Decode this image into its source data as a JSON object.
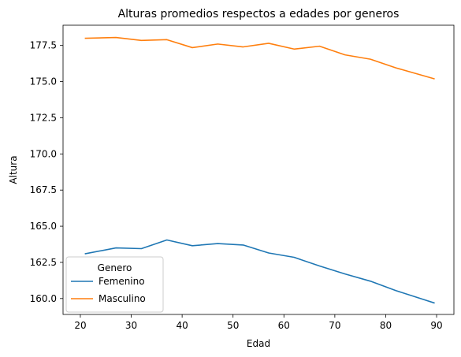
{
  "chart_data": {
    "type": "line",
    "title": "Alturas promedios respectos a edades por generos",
    "xlabel": "Edad",
    "ylabel": "Altura",
    "xlim": [
      16.6,
      93.4
    ],
    "ylim": [
      158.9,
      178.9
    ],
    "x_ticks": [
      20,
      30,
      40,
      50,
      60,
      70,
      80,
      90
    ],
    "y_ticks": [
      160.0,
      162.5,
      165.0,
      167.5,
      170.0,
      172.5,
      175.0,
      177.5
    ],
    "x_tick_labels": [
      "20",
      "30",
      "40",
      "50",
      "60",
      "70",
      "80",
      "90"
    ],
    "y_tick_labels": [
      "160.0",
      "162.5",
      "165.0",
      "167.5",
      "170.0",
      "172.5",
      "175.0",
      "177.5"
    ],
    "grid": false,
    "legend": {
      "title": "Genero",
      "placement": "lower-left"
    },
    "series": [
      {
        "name": "Femenino",
        "color": "#1f77b4",
        "x": [
          21,
          27,
          32,
          37,
          42,
          47,
          52,
          57,
          62,
          67,
          72,
          77,
          82,
          89.5
        ],
        "y": [
          163.1,
          163.5,
          163.45,
          164.05,
          163.65,
          163.8,
          163.7,
          163.15,
          162.85,
          162.25,
          161.7,
          161.2,
          160.55,
          159.7
        ]
      },
      {
        "name": "Masculino",
        "color": "#ff7f0e",
        "x": [
          21,
          27,
          32,
          37,
          42,
          47,
          52,
          57,
          62,
          67,
          72,
          77,
          82,
          89.5
        ],
        "y": [
          178.0,
          178.05,
          177.85,
          177.9,
          177.35,
          177.6,
          177.4,
          177.65,
          177.25,
          177.45,
          176.85,
          176.55,
          175.95,
          175.2
        ]
      }
    ]
  }
}
